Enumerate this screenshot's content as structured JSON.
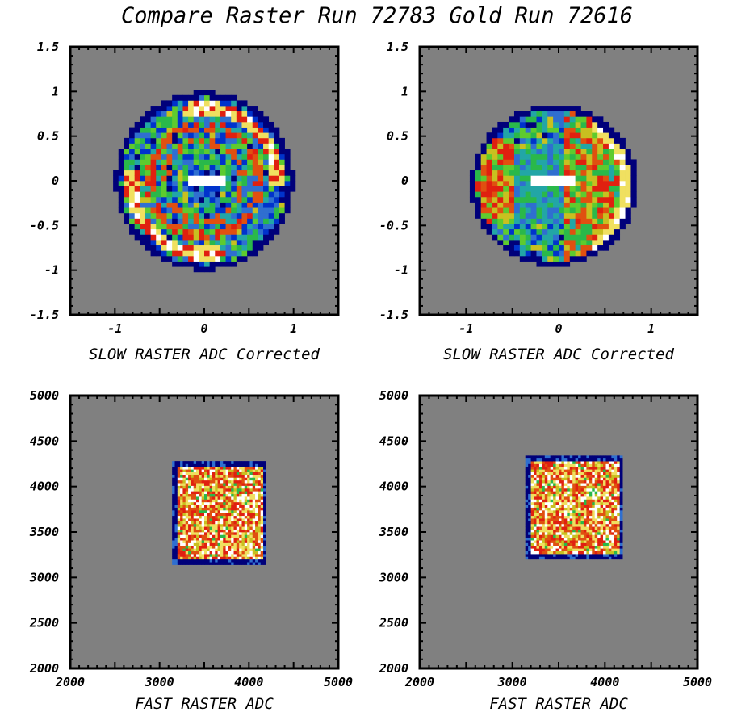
{
  "title": "Compare Raster Run 72783 Gold Run 72616",
  "colors": {
    "background": "#808080",
    "frame": "#000000",
    "colormap": [
      "#00007a",
      "#0033cc",
      "#2f6fd0",
      "#22a6a6",
      "#2ab84a",
      "#5ecb2e",
      "#c8c020",
      "#e05010",
      "#e02010",
      "#f0e060",
      "#ffffff"
    ]
  },
  "chart_data": [
    {
      "type": "heatmap",
      "name": "slow-raster-run",
      "xlabel": "SLOW RASTER ADC Corrected",
      "xlim": [
        -1.5,
        1.5
      ],
      "ylim": [
        -1.5,
        1.5
      ],
      "xticks": [
        "-1",
        "0",
        "1"
      ],
      "yticks": [
        "-1.5",
        "-1",
        "-0.5",
        "0",
        "0.5",
        "1",
        "1.5"
      ],
      "shape": "disk",
      "center": [
        0,
        0
      ],
      "radius": 1.0,
      "features": [
        "bright ring arcs near r=0.85 (upper-right and lower-left)",
        "bright horizontal streak near center"
      ]
    },
    {
      "type": "heatmap",
      "name": "slow-raster-gold",
      "xlabel": "SLOW RASTER ADC Corrected",
      "xlim": [
        -1.5,
        1.5
      ],
      "ylim": [
        -1.5,
        1.5
      ],
      "xticks": [
        "-1",
        "0",
        "1"
      ],
      "yticks": [
        "-1.5",
        "-1",
        "-0.5",
        "0",
        "0.5",
        "1",
        "1.5"
      ],
      "shape": "disk",
      "center": [
        -0.05,
        -0.05
      ],
      "radius": 0.9,
      "features": [
        "hot right half",
        "bright edge on right rim",
        "bright horizontal streak near center"
      ]
    },
    {
      "type": "heatmap",
      "name": "fast-raster-run",
      "xlabel": "FAST RASTER ADC",
      "xlim": [
        2000,
        5000
      ],
      "ylim": [
        2000,
        5000
      ],
      "xticks": [
        "2000",
        "3000",
        "4000",
        "5000"
      ],
      "yticks": [
        "2000",
        "2500",
        "3000",
        "3500",
        "4000",
        "4500",
        "5000"
      ],
      "shape": "square",
      "xrange": [
        3150,
        4200
      ],
      "yrange": [
        3150,
        4280
      ]
    },
    {
      "type": "heatmap",
      "name": "fast-raster-gold",
      "xlabel": "FAST RASTER ADC",
      "xlim": [
        2000,
        5000
      ],
      "ylim": [
        2000,
        5000
      ],
      "xticks": [
        "2000",
        "3000",
        "4000",
        "5000"
      ],
      "yticks": [
        "2000",
        "2500",
        "3000",
        "3500",
        "4000",
        "4500",
        "5000"
      ],
      "shape": "square",
      "xrange": [
        3150,
        4200
      ],
      "yrange": [
        3200,
        4330
      ]
    }
  ]
}
